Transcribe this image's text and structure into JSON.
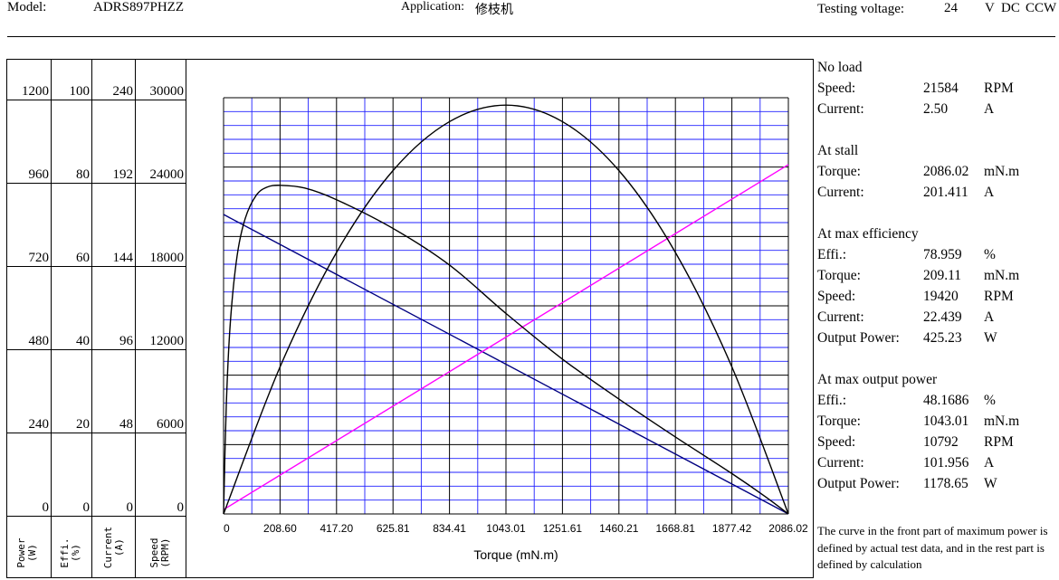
{
  "header": {
    "model_label": "Model:",
    "model_value": "ADRS897PHZZ",
    "application_label": "Application:",
    "application_value": "修枝机",
    "testing_voltage_label": "Testing voltage:",
    "voltage_value": "24",
    "voltage_unit": "V",
    "current_type": "DC",
    "rotation": "CCW"
  },
  "scale_table": {
    "power": {
      "label": "Power\n(W)",
      "ticks": [
        "1200",
        "960",
        "720",
        "480",
        "240",
        "0"
      ]
    },
    "effi": {
      "label": "Effi.\n(%)",
      "ticks": [
        "100",
        "80",
        "60",
        "40",
        "20",
        "0"
      ]
    },
    "current": {
      "label": "Current\n(A)",
      "ticks": [
        "240",
        "192",
        "144",
        "96",
        "48",
        "0"
      ]
    },
    "speed": {
      "label": "Speed\n(RPM)",
      "ticks": [
        "30000",
        "24000",
        "18000",
        "12000",
        "6000",
        "0"
      ]
    }
  },
  "chart_data": {
    "type": "line",
    "xlabel": "Torque (mN.m)",
    "x_ticks": [
      "0",
      "208.60",
      "417.20",
      "625.81",
      "834.41",
      "1043.01",
      "1251.61",
      "1460.21",
      "1668.81",
      "1877.42",
      "2086.02"
    ],
    "xlim": [
      0,
      2086.02
    ],
    "y_axes": {
      "power_W": [
        0,
        1200
      ],
      "efficiency_pct": [
        0,
        100
      ],
      "current_A": [
        0,
        240
      ],
      "speed_RPM": [
        0,
        30000
      ]
    },
    "grid": true,
    "series": [
      {
        "axis": "speed_RPM",
        "color": "#000080",
        "x": [
          0,
          2086.02
        ],
        "y": [
          21584,
          0
        ]
      },
      {
        "axis": "current_A",
        "color": "#ff00ff",
        "x": [
          0,
          2086.02
        ],
        "y": [
          2.5,
          201.411
        ]
      },
      {
        "axis": "power_W",
        "color": "#000000",
        "x": [
          0,
          208.6,
          417.2,
          625.81,
          834.41,
          1043.01,
          1251.61,
          1460.21,
          1668.81,
          1877.42,
          2086.02
        ],
        "y": [
          0,
          424,
          754,
          990,
          1131,
          1178.65,
          1131,
          990,
          754,
          424,
          0
        ]
      },
      {
        "axis": "efficiency_pct",
        "color": "#000000",
        "x": [
          0,
          10,
          25,
          50,
          80,
          120,
          160,
          209.11,
          300,
          417.2,
          625.81,
          834.41,
          1043.01,
          1251.61,
          1460.21,
          1668.81,
          1877.42,
          2000,
          2086.02
        ],
        "y": [
          0,
          26,
          46,
          62,
          71,
          76.5,
          78.5,
          78.959,
          78.3,
          75.5,
          68.6,
          59.8,
          48.17,
          37.2,
          27.6,
          18.5,
          9.7,
          4.2,
          0
        ]
      }
    ]
  },
  "info": {
    "no_load": {
      "title": "No load",
      "rows": [
        [
          "Speed:",
          "21584",
          "RPM"
        ],
        [
          "Current:",
          "2.50",
          "A"
        ]
      ]
    },
    "at_stall": {
      "title": "At stall",
      "rows": [
        [
          "Torque:",
          "2086.02",
          "mN.m"
        ],
        [
          "Current:",
          "201.411",
          "A"
        ]
      ]
    },
    "max_eff": {
      "title": "At max efficiency",
      "rows": [
        [
          "Effi.:",
          "78.959",
          "%"
        ],
        [
          "Torque:",
          "209.11",
          "mN.m"
        ],
        [
          "Speed:",
          "19420",
          "RPM"
        ],
        [
          "Current:",
          "22.439",
          "A"
        ],
        [
          "Output Power:",
          "425.23",
          "W"
        ]
      ]
    },
    "max_power": {
      "title": "At max output power",
      "rows": [
        [
          "Effi.:",
          "48.1686",
          "%"
        ],
        [
          "Torque:",
          "1043.01",
          "mN.m"
        ],
        [
          "Speed:",
          "10792",
          "RPM"
        ],
        [
          "Current:",
          "101.956",
          "A"
        ],
        [
          "Output Power:",
          "1178.65",
          "W"
        ]
      ]
    }
  },
  "note": "The curve in the front part of maximum power is defined by actual test data, and in the rest part is defined by calculation"
}
